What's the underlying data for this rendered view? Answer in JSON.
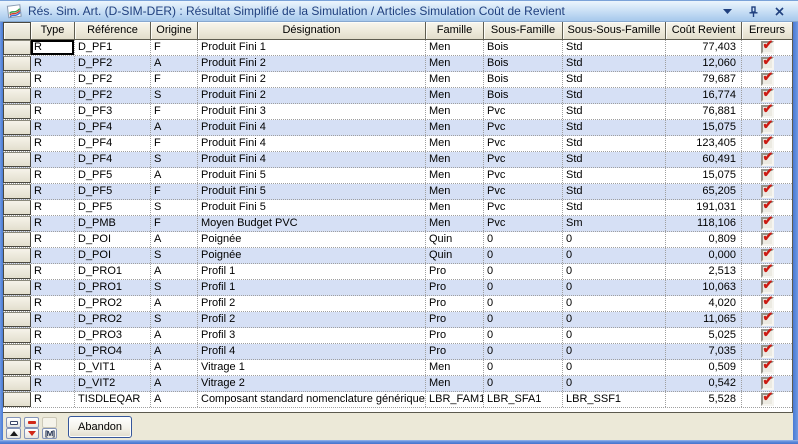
{
  "window": {
    "title": "Rés. Sim. Art. (D-SIM-DER) : Résultat Simplifié de la Simulation / Articles Simulation Coût de Revient",
    "controls": {
      "dropdown": "dropdown",
      "pin": "pin",
      "close": "close"
    }
  },
  "colors": {
    "frame_blue": "#4a7ad4",
    "titlebar_text": "#20407e",
    "row_alt": "#d6e0f5",
    "header_beige": "#ece8d8",
    "check_red": "#cc1c14"
  },
  "table": {
    "columns": {
      "type": "Type",
      "reference": "Référence",
      "origine": "Origine",
      "designation": "Désignation",
      "famille": "Famille",
      "sous_famille": "Sous-Famille",
      "sous_sous_famille": "Sous-Sous-Famille",
      "cout_revient": "Coût Revient",
      "erreurs": "Erreurs"
    },
    "focused_cell": {
      "row": 0,
      "col": "type"
    },
    "rows": [
      {
        "type": "R",
        "reference": "D_PF1",
        "origine": "F",
        "designation": "Produit Fini 1",
        "famille": "Men",
        "sous_famille": "Bois",
        "sous_sous_famille": "Std",
        "cout_revient": "77,403",
        "erreurs": true
      },
      {
        "type": "R",
        "reference": "D_PF2",
        "origine": "A",
        "designation": "Produit Fini 2",
        "famille": "Men",
        "sous_famille": "Bois",
        "sous_sous_famille": "Std",
        "cout_revient": "12,060",
        "erreurs": true
      },
      {
        "type": "R",
        "reference": "D_PF2",
        "origine": "F",
        "designation": "Produit Fini 2",
        "famille": "Men",
        "sous_famille": "Bois",
        "sous_sous_famille": "Std",
        "cout_revient": "79,687",
        "erreurs": true
      },
      {
        "type": "R",
        "reference": "D_PF2",
        "origine": "S",
        "designation": "Produit Fini 2",
        "famille": "Men",
        "sous_famille": "Bois",
        "sous_sous_famille": "Std",
        "cout_revient": "16,774",
        "erreurs": true
      },
      {
        "type": "R",
        "reference": "D_PF3",
        "origine": "F",
        "designation": "Produit Fini 3",
        "famille": "Men",
        "sous_famille": "Pvc",
        "sous_sous_famille": "Std",
        "cout_revient": "76,881",
        "erreurs": true
      },
      {
        "type": "R",
        "reference": "D_PF4",
        "origine": "A",
        "designation": "Produit Fini 4",
        "famille": "Men",
        "sous_famille": "Pvc",
        "sous_sous_famille": "Std",
        "cout_revient": "15,075",
        "erreurs": true
      },
      {
        "type": "R",
        "reference": "D_PF4",
        "origine": "F",
        "designation": "Produit Fini 4",
        "famille": "Men",
        "sous_famille": "Pvc",
        "sous_sous_famille": "Std",
        "cout_revient": "123,405",
        "erreurs": true
      },
      {
        "type": "R",
        "reference": "D_PF4",
        "origine": "S",
        "designation": "Produit Fini 4",
        "famille": "Men",
        "sous_famille": "Pvc",
        "sous_sous_famille": "Std",
        "cout_revient": "60,491",
        "erreurs": true
      },
      {
        "type": "R",
        "reference": "D_PF5",
        "origine": "A",
        "designation": "Produit Fini 5",
        "famille": "Men",
        "sous_famille": "Pvc",
        "sous_sous_famille": "Std",
        "cout_revient": "15,075",
        "erreurs": true
      },
      {
        "type": "R",
        "reference": "D_PF5",
        "origine": "F",
        "designation": "Produit Fini 5",
        "famille": "Men",
        "sous_famille": "Pvc",
        "sous_sous_famille": "Std",
        "cout_revient": "65,205",
        "erreurs": true
      },
      {
        "type": "R",
        "reference": "D_PF5",
        "origine": "S",
        "designation": "Produit Fini 5",
        "famille": "Men",
        "sous_famille": "Pvc",
        "sous_sous_famille": "Std",
        "cout_revient": "191,031",
        "erreurs": true
      },
      {
        "type": "R",
        "reference": "D_PMB",
        "origine": "F",
        "designation": "Moyen Budget PVC",
        "famille": "Men",
        "sous_famille": "Pvc",
        "sous_sous_famille": "Sm",
        "cout_revient": "118,106",
        "erreurs": true
      },
      {
        "type": "R",
        "reference": "D_POI",
        "origine": "A",
        "designation": "Poignée",
        "famille": "Quin",
        "sous_famille": "0",
        "sous_sous_famille": "0",
        "cout_revient": "0,809",
        "erreurs": true
      },
      {
        "type": "R",
        "reference": "D_POI",
        "origine": "S",
        "designation": "Poignée",
        "famille": "Quin",
        "sous_famille": "0",
        "sous_sous_famille": "0",
        "cout_revient": "0,000",
        "erreurs": true
      },
      {
        "type": "R",
        "reference": "D_PRO1",
        "origine": "A",
        "designation": "Profil 1",
        "famille": "Pro",
        "sous_famille": "0",
        "sous_sous_famille": "0",
        "cout_revient": "2,513",
        "erreurs": true
      },
      {
        "type": "R",
        "reference": "D_PRO1",
        "origine": "S",
        "designation": "Profil 1",
        "famille": "Pro",
        "sous_famille": "0",
        "sous_sous_famille": "0",
        "cout_revient": "10,063",
        "erreurs": true
      },
      {
        "type": "R",
        "reference": "D_PRO2",
        "origine": "A",
        "designation": "Profil 2",
        "famille": "Pro",
        "sous_famille": "0",
        "sous_sous_famille": "0",
        "cout_revient": "4,020",
        "erreurs": true
      },
      {
        "type": "R",
        "reference": "D_PRO2",
        "origine": "S",
        "designation": "Profil 2",
        "famille": "Pro",
        "sous_famille": "0",
        "sous_sous_famille": "0",
        "cout_revient": "11,065",
        "erreurs": true
      },
      {
        "type": "R",
        "reference": "D_PRO3",
        "origine": "A",
        "designation": "Profil 3",
        "famille": "Pro",
        "sous_famille": "0",
        "sous_sous_famille": "0",
        "cout_revient": "5,025",
        "erreurs": true
      },
      {
        "type": "R",
        "reference": "D_PRO4",
        "origine": "A",
        "designation": "Profil 4",
        "famille": "Pro",
        "sous_famille": "0",
        "sous_sous_famille": "0",
        "cout_revient": "7,035",
        "erreurs": true
      },
      {
        "type": "R",
        "reference": "D_VIT1",
        "origine": "A",
        "designation": "Vitrage 1",
        "famille": "Men",
        "sous_famille": "0",
        "sous_sous_famille": "0",
        "cout_revient": "0,509",
        "erreurs": true
      },
      {
        "type": "R",
        "reference": "D_VIT2",
        "origine": "A",
        "designation": "Vitrage 2",
        "famille": "Men",
        "sous_famille": "0",
        "sous_sous_famille": "0",
        "cout_revient": "0,542",
        "erreurs": true
      },
      {
        "type": "R",
        "reference": "TISDLEQAR",
        "origine": "A",
        "designation": "Composant standard nomenclature générique",
        "famille": "LBR_FAM1",
        "sous_famille": "LBR_SFA1",
        "sous_sous_famille": "LBR_SSF1",
        "cout_revient": "5,528",
        "erreurs": true
      }
    ]
  },
  "footer": {
    "abandon_label": "Abandon",
    "nav": {
      "memo_label": "[M]"
    }
  }
}
